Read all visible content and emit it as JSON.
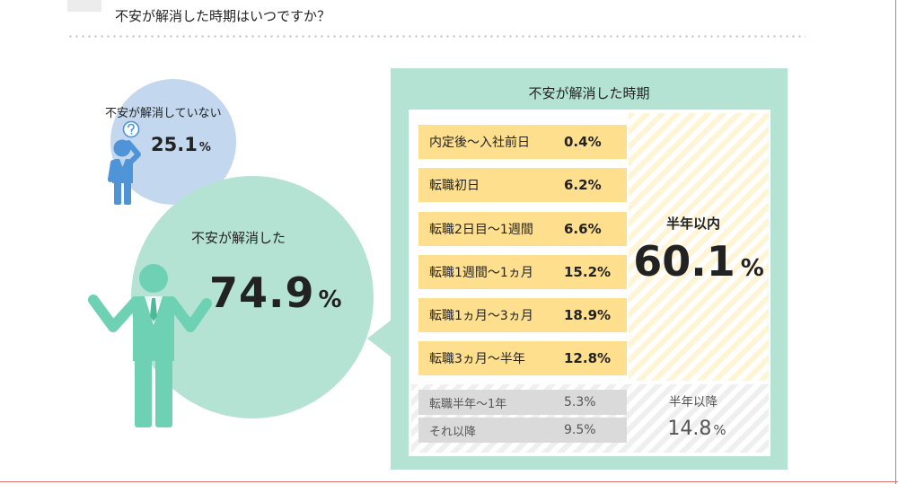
{
  "header": {
    "title": "不安が解消した時期はいつですか？"
  },
  "colors": {
    "resolved": "#b5e3d3",
    "unresolved": "#c3d7ee",
    "within_half_year": "#fedf8e",
    "after_half_year": "#dadada",
    "figure_resolved": "#6fd1b3",
    "figure_unresolved": "#4f93d8"
  },
  "icons": {
    "unresolved_figure": "confused-person-icon",
    "resolved_figure": "relieved-person-icon"
  },
  "chart_data": [
    {
      "type": "pie",
      "categories": [
        "不安が解消していない",
        "不安が解消した"
      ],
      "values": [
        25.1,
        74.9
      ],
      "unit": "%"
    },
    {
      "type": "table",
      "title": "不安が解消した時期",
      "unit": "%",
      "groups": [
        {
          "label": "半年以内",
          "total": 60.1,
          "rows": [
            {
              "label": "内定後～入社前日",
              "value": 0.4
            },
            {
              "label": "転職初日",
              "value": 6.2
            },
            {
              "label": "転職2日目～1週間",
              "value": 6.6
            },
            {
              "label": "転職1週間～1ヵ月",
              "value": 15.2
            },
            {
              "label": "転職1ヵ月～3ヵ月",
              "value": 18.9
            },
            {
              "label": "転職3ヵ月～半年",
              "value": 12.8
            }
          ]
        },
        {
          "label": "半年以降",
          "total": 14.8,
          "rows": [
            {
              "label": "転職半年～1年",
              "value": 5.3
            },
            {
              "label": "それ以降",
              "value": 9.5
            }
          ]
        }
      ]
    }
  ]
}
